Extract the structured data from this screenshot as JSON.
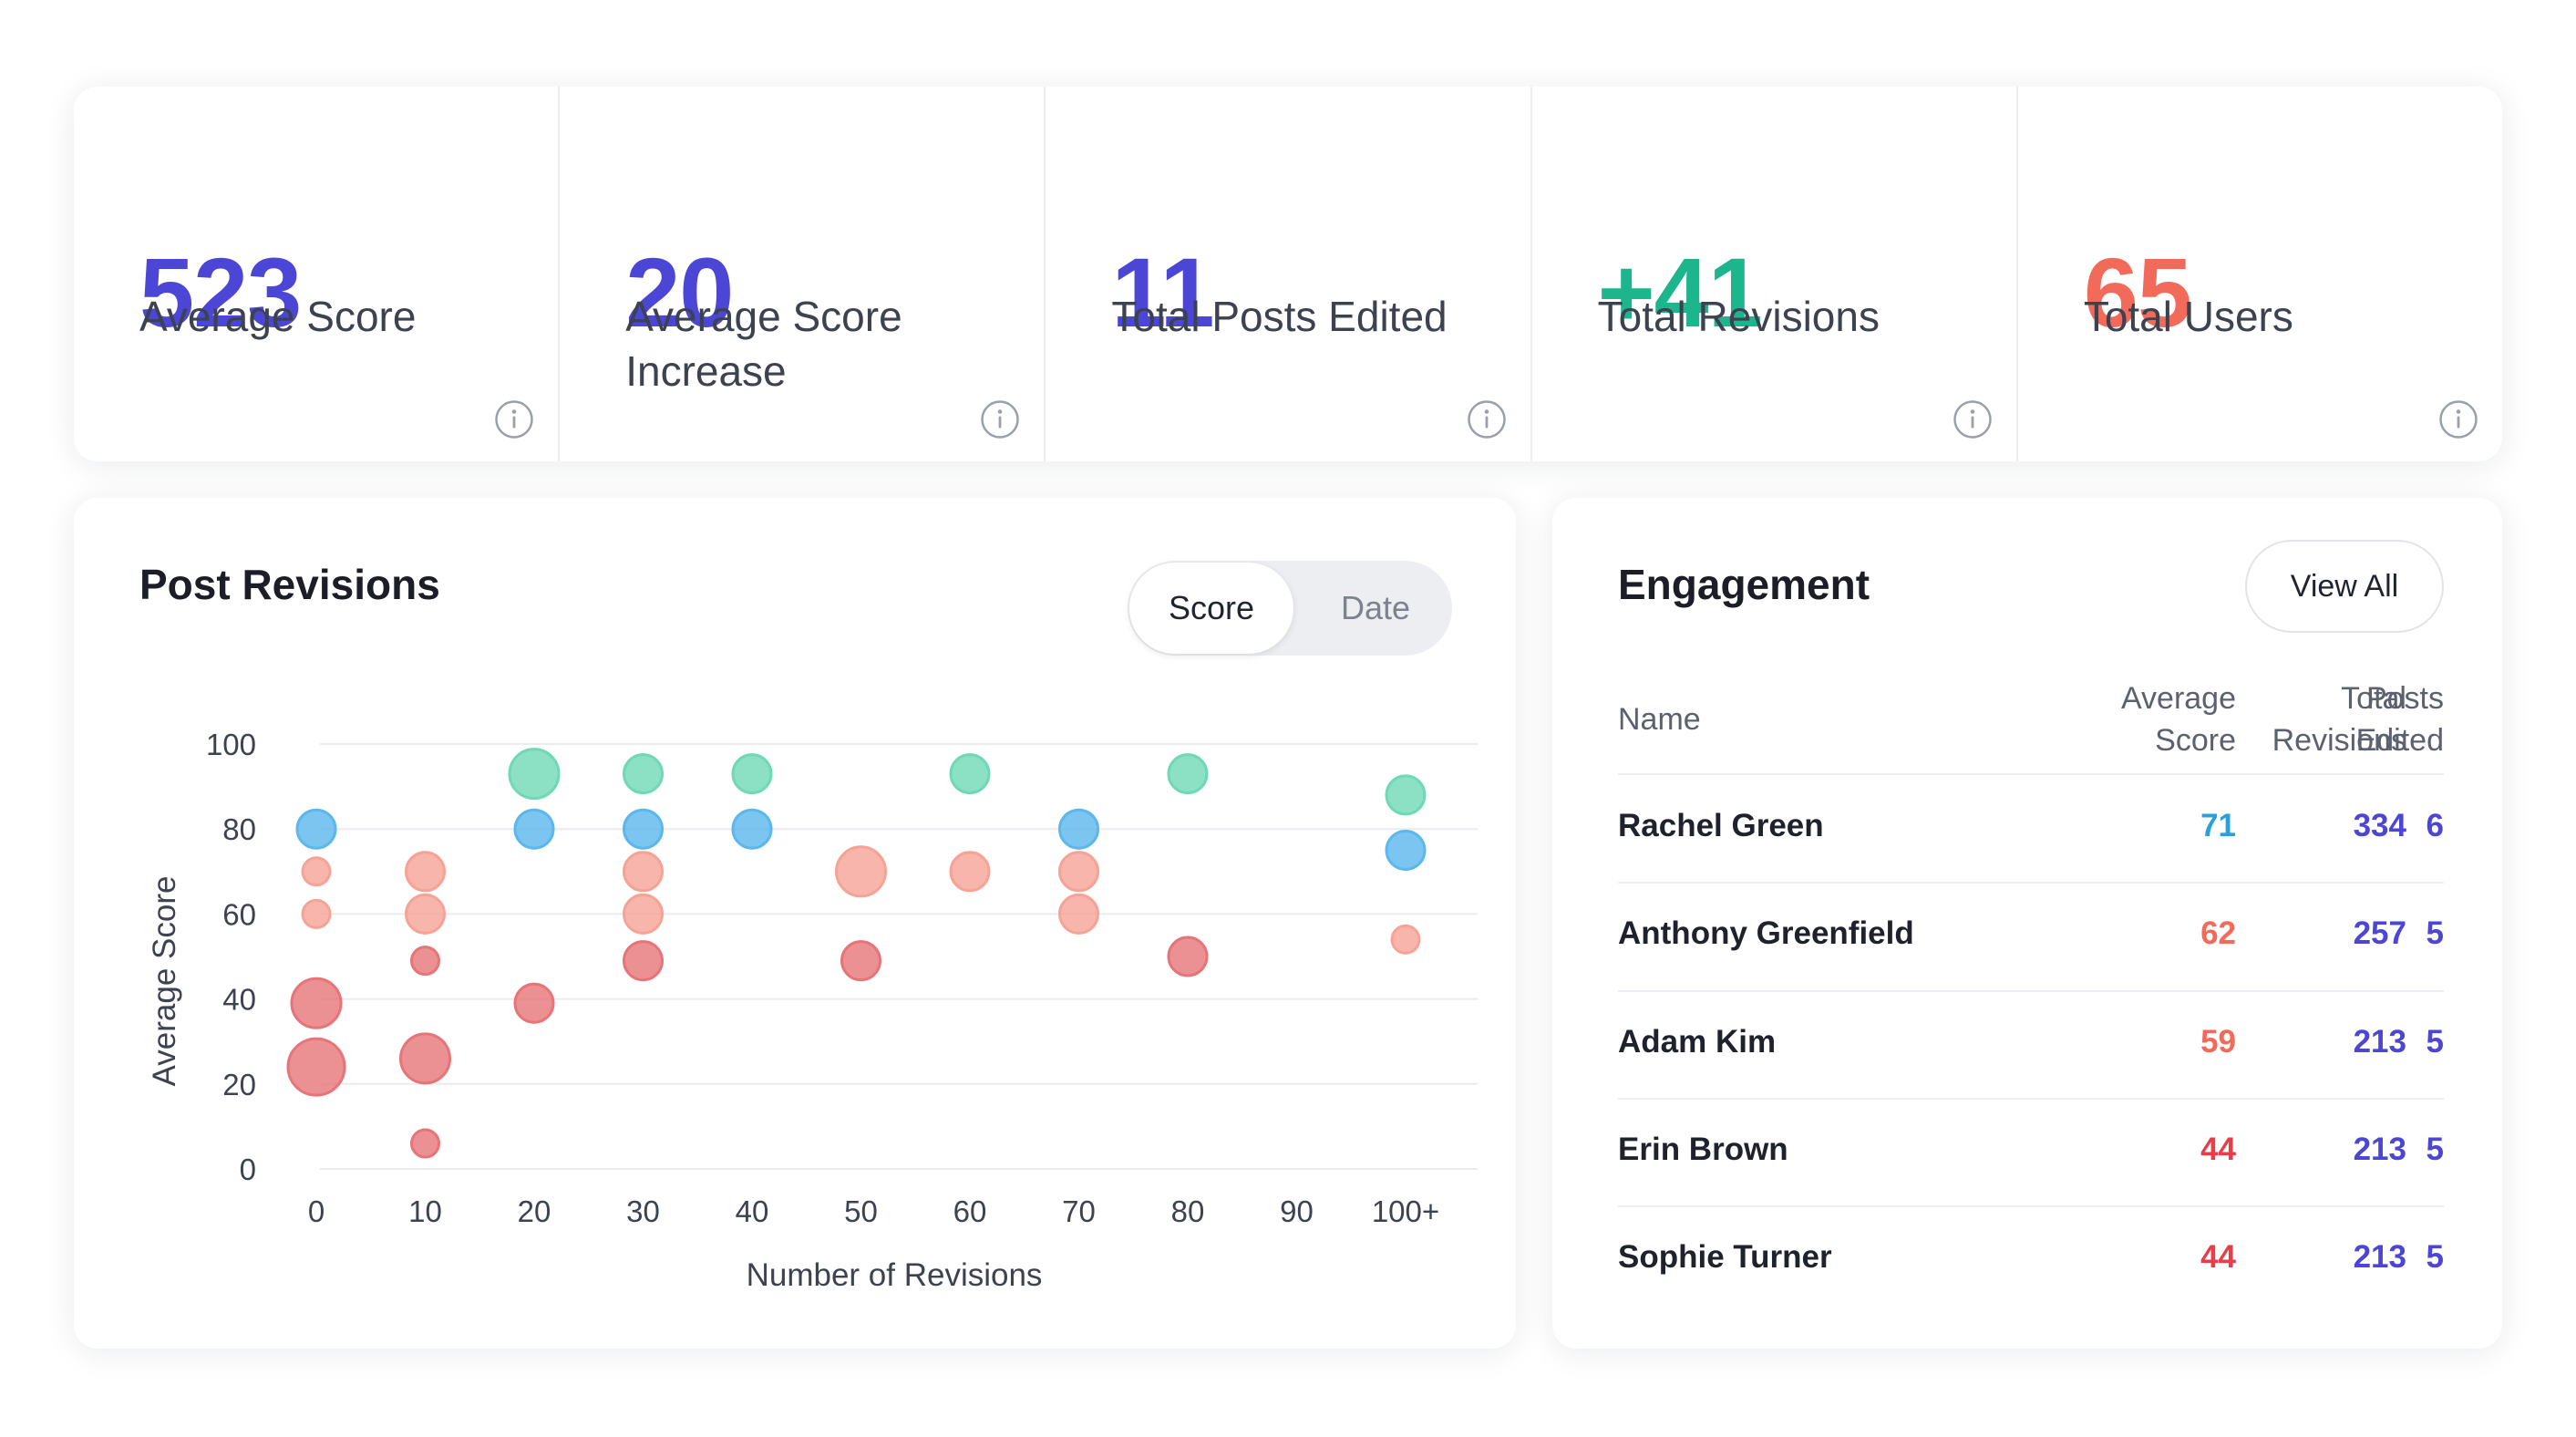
{
  "stats": [
    {
      "value": "523",
      "label": "Average Score",
      "color": "#4b46d6"
    },
    {
      "value": "20",
      "label": "Average Score Increase",
      "color": "#4b46d6"
    },
    {
      "value": "11",
      "label": "Total Posts Edited",
      "color": "#4b46d6"
    },
    {
      "value": "+41",
      "label": "Total Revisions",
      "color": "#1db58c"
    },
    {
      "value": "65",
      "label": "Total Users",
      "color": "#f26a5a"
    }
  ],
  "chart_card": {
    "title": "Post Revisions",
    "toggle": {
      "score_label": "Score",
      "date_label": "Date",
      "selected": "Score"
    }
  },
  "chart_data": {
    "type": "scatter",
    "title": "Post Revisions",
    "xlabel": "Number of Revisions",
    "ylabel": "Average Score",
    "x_ticks": [
      "0",
      "10",
      "20",
      "30",
      "40",
      "50",
      "60",
      "70",
      "80",
      "90",
      "100+"
    ],
    "y_ticks": [
      0,
      20,
      40,
      60,
      80,
      100
    ],
    "ylim": [
      0,
      100
    ],
    "grid": true,
    "colors": {
      "teal": "#6fd8b5",
      "blue": "#5bb7ec",
      "salmon": "#f6a396",
      "red": "#e67478"
    },
    "points": [
      {
        "x": 0,
        "y": 80,
        "size": "medium",
        "color": "blue"
      },
      {
        "x": 0,
        "y": 70,
        "size": "small",
        "color": "salmon"
      },
      {
        "x": 0,
        "y": 60,
        "size": "small",
        "color": "salmon"
      },
      {
        "x": 0,
        "y": 39,
        "size": "large",
        "color": "red"
      },
      {
        "x": 0,
        "y": 24,
        "size": "xlarge",
        "color": "red"
      },
      {
        "x": 10,
        "y": 70,
        "size": "medium",
        "color": "salmon"
      },
      {
        "x": 10,
        "y": 60,
        "size": "medium",
        "color": "salmon"
      },
      {
        "x": 10,
        "y": 49,
        "size": "small",
        "color": "red"
      },
      {
        "x": 10,
        "y": 26,
        "size": "large",
        "color": "red"
      },
      {
        "x": 10,
        "y": 6,
        "size": "small",
        "color": "red"
      },
      {
        "x": 20,
        "y": 93,
        "size": "large",
        "color": "teal"
      },
      {
        "x": 20,
        "y": 80,
        "size": "medium",
        "color": "blue"
      },
      {
        "x": 20,
        "y": 39,
        "size": "medium",
        "color": "red"
      },
      {
        "x": 30,
        "y": 93,
        "size": "medium",
        "color": "teal"
      },
      {
        "x": 30,
        "y": 80,
        "size": "medium",
        "color": "blue"
      },
      {
        "x": 30,
        "y": 70,
        "size": "medium",
        "color": "salmon"
      },
      {
        "x": 30,
        "y": 60,
        "size": "medium",
        "color": "salmon"
      },
      {
        "x": 30,
        "y": 49,
        "size": "medium",
        "color": "red"
      },
      {
        "x": 40,
        "y": 93,
        "size": "medium",
        "color": "teal"
      },
      {
        "x": 40,
        "y": 80,
        "size": "medium",
        "color": "blue"
      },
      {
        "x": 50,
        "y": 70,
        "size": "large",
        "color": "salmon"
      },
      {
        "x": 50,
        "y": 49,
        "size": "medium",
        "color": "red"
      },
      {
        "x": 60,
        "y": 93,
        "size": "medium",
        "color": "teal"
      },
      {
        "x": 60,
        "y": 70,
        "size": "medium",
        "color": "salmon"
      },
      {
        "x": 70,
        "y": 80,
        "size": "medium",
        "color": "blue"
      },
      {
        "x": 70,
        "y": 70,
        "size": "medium",
        "color": "salmon"
      },
      {
        "x": 70,
        "y": 60,
        "size": "medium",
        "color": "salmon"
      },
      {
        "x": 80,
        "y": 93,
        "size": "medium",
        "color": "teal"
      },
      {
        "x": 80,
        "y": 50,
        "size": "medium",
        "color": "red"
      },
      {
        "x": 100,
        "y": 88,
        "size": "medium",
        "color": "teal"
      },
      {
        "x": 100,
        "y": 75,
        "size": "medium",
        "color": "blue"
      },
      {
        "x": 100,
        "y": 54,
        "size": "small",
        "color": "salmon"
      }
    ]
  },
  "engagement": {
    "title": "Engagement",
    "view_all_label": "View All",
    "headers": {
      "name": "Name",
      "avg_score": [
        "Average",
        "Score"
      ],
      "total_revisions": [
        "Total",
        "Revisions"
      ],
      "posts_edited": [
        "Posts",
        "Edited"
      ]
    },
    "rows": [
      {
        "name": "Rachel Green",
        "avg_score": "71",
        "avg_color": "#2a9fd8",
        "total_revisions": "334",
        "posts_edited": "6"
      },
      {
        "name": "Anthony Greenfield",
        "avg_score": "62",
        "avg_color": "#f26a5a",
        "total_revisions": "257",
        "posts_edited": "5"
      },
      {
        "name": "Adam Kim",
        "avg_score": "59",
        "avg_color": "#f26a5a",
        "total_revisions": "213",
        "posts_edited": "5"
      },
      {
        "name": "Erin Brown",
        "avg_score": "44",
        "avg_color": "#e5404a",
        "total_revisions": "213",
        "posts_edited": "5"
      },
      {
        "name": "Sophie Turner",
        "avg_score": "44",
        "avg_color": "#e5404a",
        "total_revisions": "213",
        "posts_edited": "5"
      }
    ],
    "number_color": "#4b46d6"
  }
}
